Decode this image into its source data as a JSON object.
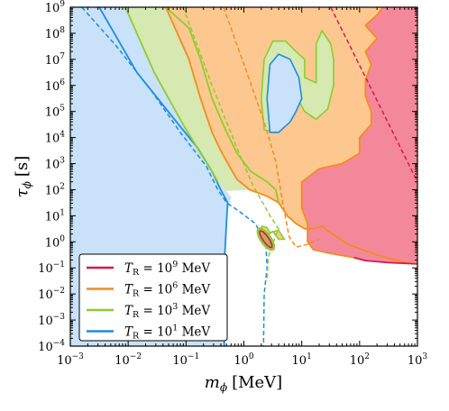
{
  "chart_data": {
    "type": "area",
    "title": "",
    "xlabel": {
      "symbol": "m",
      "sub": "ϕ",
      "unit": "[MeV]"
    },
    "ylabel": {
      "symbol": "τ",
      "sub": "ϕ",
      "unit": "[s]"
    },
    "xscale": "log",
    "yscale": "log",
    "xlim_exp": [
      -3,
      3
    ],
    "ylim_exp": [
      -4,
      9
    ],
    "x_ticks": [
      {
        "base": "10",
        "exp": "−3",
        "v": -3
      },
      {
        "base": "10",
        "exp": "−2",
        "v": -2
      },
      {
        "base": "10",
        "exp": "−1",
        "v": -1
      },
      {
        "base": "10",
        "exp": "0",
        "v": 0
      },
      {
        "base": "10",
        "exp": "1",
        "v": 1
      },
      {
        "base": "10",
        "exp": "2",
        "v": 2
      },
      {
        "base": "10",
        "exp": "3",
        "v": 3
      }
    ],
    "y_ticks": [
      {
        "base": "10",
        "exp": "−4",
        "v": -4
      },
      {
        "base": "10",
        "exp": "−3",
        "v": -3
      },
      {
        "base": "10",
        "exp": "−2",
        "v": -2
      },
      {
        "base": "10",
        "exp": "−1",
        "v": -1
      },
      {
        "base": "10",
        "exp": "0",
        "v": 0
      },
      {
        "base": "10",
        "exp": "1",
        "v": 1
      },
      {
        "base": "10",
        "exp": "2",
        "v": 2
      },
      {
        "base": "10",
        "exp": "3",
        "v": 3
      },
      {
        "base": "10",
        "exp": "4",
        "v": 4
      },
      {
        "base": "10",
        "exp": "5",
        "v": 5
      },
      {
        "base": "10",
        "exp": "6",
        "v": 6
      },
      {
        "base": "10",
        "exp": "7",
        "v": 7
      },
      {
        "base": "10",
        "exp": "8",
        "v": 8
      },
      {
        "base": "10",
        "exp": "9",
        "v": 9
      }
    ],
    "legend_position": "bottom-left",
    "series": [
      {
        "name": "T_R = 10^9 MeV",
        "legend": {
          "sym": "T",
          "sub": "R",
          "mid": " = 10",
          "exp": "9",
          "unit": " MeV"
        },
        "line_color": "#d6194b",
        "fill_color": "#f4889b",
        "region": [
          [
            3,
            -0.85
          ],
          [
            2.5,
            -0.8
          ],
          [
            2.1,
            -0.72
          ],
          [
            1.9,
            -0.6
          ],
          [
            1.5,
            -0.45
          ],
          [
            1.2,
            -0.3
          ],
          [
            1.1,
            0
          ],
          [
            1.1,
            0.7
          ],
          [
            1.0,
            1.3
          ],
          [
            1.0,
            2.3
          ],
          [
            1.3,
            2.8
          ],
          [
            1.7,
            3.0
          ],
          [
            2.0,
            3.4
          ],
          [
            2.0,
            4.0
          ],
          [
            2.2,
            4.5
          ],
          [
            2.2,
            5.0
          ],
          [
            2.1,
            5.6
          ],
          [
            2.1,
            6.2
          ],
          [
            2.2,
            6.8
          ],
          [
            2.1,
            7.3
          ],
          [
            2.3,
            7.8
          ],
          [
            2.1,
            8.3
          ],
          [
            2.3,
            8.7
          ],
          [
            2.4,
            9
          ],
          [
            3,
            9
          ]
        ],
        "boundary": [
          [
            3,
            -0.85
          ],
          [
            2.5,
            -0.8
          ],
          [
            2.1,
            -0.72
          ],
          [
            1.9,
            -0.6
          ]
        ],
        "dashed": [
          [
            1.5,
            9
          ],
          [
            3,
            2.3
          ]
        ]
      },
      {
        "name": "T_R = 10^6 MeV",
        "legend": {
          "sym": "T",
          "sub": "R",
          "mid": " = 10",
          "exp": "6",
          "unit": " MeV"
        },
        "line_color": "#f28c1e",
        "fill_color": "#fdc890",
        "region": [
          [
            -1.35,
            9
          ],
          [
            -0.95,
            7.0
          ],
          [
            -0.75,
            5.5
          ],
          [
            -0.55,
            4.2
          ],
          [
            -0.4,
            3.5
          ],
          [
            -0.25,
            2.9
          ],
          [
            -0.12,
            2.4
          ],
          [
            0.1,
            2.0
          ],
          [
            0.4,
            1.75
          ],
          [
            0.6,
            1.5
          ],
          [
            0.75,
            1.0
          ],
          [
            0.9,
            0.7
          ],
          [
            1.05,
            0.5
          ],
          [
            1.2,
            0.5
          ],
          [
            1.35,
            0.6
          ],
          [
            1.5,
            0.35
          ],
          [
            1.8,
            -0.1
          ],
          [
            2.3,
            -0.5
          ],
          [
            2.7,
            -0.75
          ],
          [
            3,
            -0.85
          ],
          [
            2.5,
            -0.8
          ],
          [
            2.1,
            -0.72
          ],
          [
            1.9,
            -0.6
          ],
          [
            1.5,
            -0.45
          ],
          [
            1.2,
            -0.3
          ],
          [
            1.1,
            0
          ],
          [
            1.1,
            0.7
          ],
          [
            1.0,
            1.3
          ],
          [
            1.0,
            2.3
          ],
          [
            1.3,
            2.8
          ],
          [
            1.7,
            3.0
          ],
          [
            2.0,
            3.4
          ],
          [
            2.0,
            4.0
          ],
          [
            2.2,
            4.5
          ],
          [
            2.2,
            5.0
          ],
          [
            2.1,
            5.6
          ],
          [
            2.1,
            6.2
          ],
          [
            2.2,
            6.8
          ],
          [
            2.1,
            7.3
          ],
          [
            2.3,
            7.8
          ],
          [
            2.1,
            8.3
          ],
          [
            2.3,
            8.7
          ],
          [
            2.4,
            9
          ]
        ],
        "boundary": [
          [
            -1.35,
            9
          ],
          [
            -0.95,
            7.0
          ],
          [
            -0.75,
            5.5
          ],
          [
            -0.55,
            4.2
          ],
          [
            -0.4,
            3.5
          ],
          [
            -0.25,
            2.9
          ],
          [
            -0.12,
            2.4
          ],
          [
            0.1,
            2.0
          ],
          [
            0.4,
            1.75
          ],
          [
            0.6,
            1.5
          ],
          [
            0.75,
            1.0
          ],
          [
            0.9,
            0.7
          ],
          [
            1.05,
            0.5
          ],
          [
            1.2,
            0.5
          ],
          [
            1.35,
            0.6
          ],
          [
            1.5,
            0.35
          ],
          [
            1.8,
            -0.1
          ],
          [
            2.3,
            -0.5
          ],
          [
            2.7,
            -0.75
          ],
          [
            3,
            -0.85
          ]
        ],
        "boundary2": [
          [
            1.9,
            -0.6
          ],
          [
            1.5,
            -0.45
          ],
          [
            1.2,
            -0.3
          ],
          [
            1.1,
            0
          ],
          [
            1.1,
            0.7
          ],
          [
            1.0,
            1.3
          ],
          [
            1.0,
            2.3
          ],
          [
            1.3,
            2.8
          ],
          [
            1.7,
            3.0
          ],
          [
            2.0,
            3.4
          ],
          [
            2.0,
            4.0
          ],
          [
            2.2,
            4.5
          ],
          [
            2.2,
            5.0
          ],
          [
            2.1,
            5.6
          ],
          [
            2.1,
            6.2
          ],
          [
            2.2,
            6.8
          ],
          [
            2.1,
            7.3
          ],
          [
            2.3,
            7.8
          ],
          [
            2.1,
            8.3
          ],
          [
            2.3,
            8.7
          ],
          [
            2.4,
            9
          ]
        ],
        "dashed": [
          [
            -0.35,
            9
          ],
          [
            0.05,
            6.5
          ],
          [
            0.35,
            4.6
          ],
          [
            0.55,
            3.1
          ],
          [
            0.68,
            1.4
          ],
          [
            0.78,
            0.2
          ],
          [
            0.9,
            -0.2
          ],
          [
            1.1,
            -0.1
          ],
          [
            1.3,
            0.1
          ]
        ]
      },
      {
        "name": "T_R = 10^3 MeV",
        "legend": {
          "sym": "T",
          "sub": "R",
          "mid": " = 10",
          "exp": "3",
          "unit": " MeV"
        },
        "line_color": "#8dcc33",
        "fill_color": "#d5e9b0",
        "region": [
          [
            -2.05,
            9
          ],
          [
            -1.55,
            6.5
          ],
          [
            -1.05,
            4.5
          ],
          [
            -0.75,
            3.4
          ],
          [
            -0.55,
            2.7
          ],
          [
            -0.45,
            2.3
          ],
          [
            -0.3,
            1.95
          ],
          [
            0.1,
            2.0
          ],
          [
            0.4,
            1.75
          ],
          [
            0.6,
            1.5
          ],
          [
            0.55,
            2.0
          ],
          [
            0.4,
            2.3
          ],
          [
            0.12,
            2.7
          ],
          [
            -0.12,
            3.4
          ],
          [
            -0.32,
            4.3
          ],
          [
            -0.55,
            5.5
          ],
          [
            -0.75,
            7.0
          ],
          [
            -0.95,
            8.2
          ],
          [
            -1.35,
            9
          ]
        ],
        "boundary": [
          [
            -2.05,
            9
          ],
          [
            -1.55,
            6.5
          ],
          [
            -1.05,
            4.5
          ],
          [
            -0.75,
            3.4
          ],
          [
            -0.55,
            2.7
          ],
          [
            -0.45,
            2.3
          ]
        ],
        "boundary2": [
          [
            0.6,
            1.5
          ],
          [
            0.55,
            2.0
          ],
          [
            0.4,
            2.3
          ],
          [
            0.12,
            2.7
          ],
          [
            -0.12,
            3.4
          ],
          [
            -0.32,
            4.3
          ],
          [
            -0.55,
            5.5
          ],
          [
            -0.75,
            7.0
          ],
          [
            -0.95,
            8.2
          ],
          [
            -1.35,
            9
          ]
        ],
        "island_outer": [
          [
            0.35,
            4.3
          ],
          [
            0.3,
            5.5
          ],
          [
            0.35,
            7.0
          ],
          [
            0.5,
            7.7
          ],
          [
            0.72,
            7.7
          ],
          [
            0.9,
            7.3
          ],
          [
            1.05,
            7.0
          ],
          [
            1.05,
            6.3
          ],
          [
            1.25,
            6.1
          ],
          [
            1.25,
            7.6
          ],
          [
            1.35,
            8.1
          ],
          [
            1.5,
            7.6
          ],
          [
            1.55,
            7.0
          ],
          [
            1.55,
            6.0
          ],
          [
            1.45,
            5.1
          ],
          [
            1.25,
            4.7
          ],
          [
            1.05,
            5.0
          ],
          [
            0.95,
            5.4
          ],
          [
            0.8,
            5.0
          ],
          [
            0.55,
            4.2
          ],
          [
            0.35,
            4.3
          ]
        ],
        "island_small": [
          [
            0.32,
            0.6
          ],
          [
            0.25,
            0.45
          ],
          [
            0.35,
            0.15
          ],
          [
            0.5,
            0.4
          ],
          [
            0.6,
            0.1
          ],
          [
            0.7,
            0.1
          ],
          [
            0.6,
            0.45
          ],
          [
            0.45,
            0.35
          ],
          [
            0.4,
            0.55
          ],
          [
            0.32,
            0.6
          ]
        ],
        "dashed": [
          [
            -1.05,
            9
          ],
          [
            -0.55,
            6.0
          ],
          [
            -0.12,
            3.6
          ],
          [
            0.15,
            2.2
          ],
          [
            0.45,
            1.0
          ],
          [
            0.6,
            0.5
          ],
          [
            0.5,
            -0.05
          ],
          [
            0.42,
            -0.6
          ],
          [
            0.4,
            -1.5
          ]
        ]
      },
      {
        "name": "T_R = 10^1 MeV",
        "legend": {
          "sym": "T",
          "sub": "R",
          "mid": " = 10",
          "exp": "1",
          "unit": " MeV"
        },
        "line_color": "#1f8ce0",
        "fill_color": "#c9e2f9",
        "region": [
          [
            -3,
            9
          ],
          [
            -2.05,
            9
          ],
          [
            -1.55,
            6.5
          ],
          [
            -1.05,
            4.5
          ],
          [
            -0.75,
            3.4
          ],
          [
            -0.55,
            2.7
          ],
          [
            -0.45,
            2.3
          ],
          [
            -0.3,
            1.95
          ],
          [
            -0.22,
            1.7
          ],
          [
            -0.28,
            1.2
          ],
          [
            -0.32,
            0
          ],
          [
            -0.33,
            -2
          ],
          [
            -0.34,
            -4
          ],
          [
            -3,
            -4
          ]
        ],
        "boundary": [
          [
            -2.5,
            9
          ],
          [
            -1.85,
            6.5
          ],
          [
            -1.2,
            4.7
          ],
          [
            -0.8,
            3.6
          ],
          [
            -0.55,
            2.7
          ],
          [
            -0.4,
            2.0
          ],
          [
            -0.28,
            1.5
          ],
          [
            -0.3,
            0.8
          ],
          [
            -0.33,
            -0.5
          ],
          [
            -0.34,
            -4
          ]
        ],
        "island": [
          [
            0.45,
            4.2
          ],
          [
            0.4,
            5.5
          ],
          [
            0.45,
            6.8
          ],
          [
            0.6,
            7.2
          ],
          [
            0.8,
            7.0
          ],
          [
            0.95,
            6.3
          ],
          [
            1.0,
            5.5
          ],
          [
            0.9,
            5.0
          ],
          [
            0.8,
            4.6
          ],
          [
            0.6,
            4.2
          ],
          [
            0.45,
            4.2
          ]
        ],
        "dashed": [
          [
            -2.8,
            9
          ],
          [
            -2.2,
            7.5
          ],
          [
            -1.6,
            5.8
          ],
          [
            -1.1,
            4.2
          ],
          [
            -0.65,
            2.9
          ],
          [
            -0.45,
            2.0
          ],
          [
            -0.3,
            1.5
          ],
          [
            -0.1,
            1.2
          ],
          [
            0.2,
            0.7
          ],
          [
            0.38,
            -0.1
          ],
          [
            0.4,
            -1.0
          ],
          [
            0.35,
            -2
          ],
          [
            0.34,
            -4
          ]
        ]
      }
    ],
    "enclosed_feature": {
      "fill_color": "#c9a74e",
      "line_color": "#c1186b",
      "center": [
        0.38,
        0.1
      ]
    }
  }
}
